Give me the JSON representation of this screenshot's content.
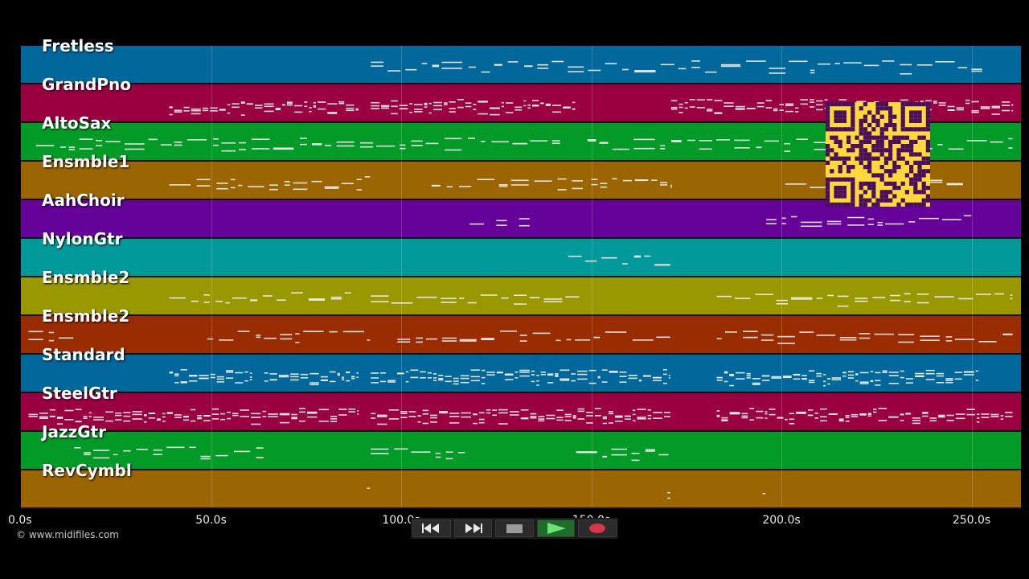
{
  "tracks": [
    {
      "name": "Fretless",
      "color": "#02679a"
    },
    {
      "name": "GrandPno",
      "color": "#9a0040"
    },
    {
      "name": "AltoSax",
      "color": "#049a27"
    },
    {
      "name": "Ensmble1",
      "color": "#9a6502"
    },
    {
      "name": "AahChoir",
      "color": "#64029a"
    },
    {
      "name": "NylonGtr",
      "color": "#02999a"
    },
    {
      "name": "Ensmble2",
      "color": "#9a9802"
    },
    {
      "name": "Ensmble2",
      "color": "#9a2c02"
    },
    {
      "name": "Standard",
      "color": "#02679a"
    },
    {
      "name": "SteelGtr",
      "color": "#9a0040"
    },
    {
      "name": "JazzGtr",
      "color": "#049a27"
    },
    {
      "name": "RevCymbl",
      "color": "#9a6502"
    }
  ],
  "timeline": {
    "max_seconds": 263,
    "ticks": [
      {
        "value": 0,
        "label": "0.0s"
      },
      {
        "value": 50,
        "label": "50.0s"
      },
      {
        "value": 100,
        "label": "100.0s"
      },
      {
        "value": 150,
        "label": "150.0s"
      },
      {
        "value": 200,
        "label": "200.0s"
      },
      {
        "value": 250,
        "label": "250.0s"
      }
    ]
  },
  "note_segments": [
    {
      "track": 0,
      "ranges": [
        [
          92,
          253
        ]
      ]
    },
    {
      "track": 1,
      "ranges": [
        [
          39,
          89
        ],
        [
          92,
          146
        ],
        [
          171,
          261
        ]
      ]
    },
    {
      "track": 2,
      "ranges": [
        [
          4,
          142
        ],
        [
          149,
          261
        ]
      ]
    },
    {
      "track": 3,
      "ranges": [
        [
          39,
          92
        ],
        [
          108,
          148
        ],
        [
          150,
          171
        ],
        [
          201,
          248
        ]
      ]
    },
    {
      "track": 4,
      "ranges": [
        [
          118,
          122
        ],
        [
          125,
          128
        ],
        [
          131,
          134
        ],
        [
          196,
          251
        ]
      ]
    },
    {
      "track": 5,
      "ranges": [
        [
          144,
          171
        ]
      ]
    },
    {
      "track": 6,
      "ranges": [
        [
          39,
          87
        ],
        [
          92,
          147
        ],
        [
          183,
          261
        ]
      ]
    },
    {
      "track": 7,
      "ranges": [
        [
          2,
          14
        ],
        [
          49,
          92
        ],
        [
          99,
          171
        ],
        [
          183,
          261
        ]
      ]
    },
    {
      "track": 8,
      "ranges": [
        [
          39,
          61
        ],
        [
          64,
          89
        ],
        [
          92,
          171
        ],
        [
          183,
          252
        ]
      ]
    },
    {
      "track": 9,
      "ranges": [
        [
          2,
          89
        ],
        [
          92,
          171
        ],
        [
          183,
          261
        ]
      ]
    },
    {
      "track": 10,
      "ranges": [
        [
          14,
          64
        ],
        [
          92,
          117
        ],
        [
          146,
          171
        ]
      ]
    },
    {
      "track": 11,
      "ranges": [
        [
          91,
          92
        ],
        [
          170,
          171
        ],
        [
          195,
          196
        ]
      ]
    }
  ],
  "controls": {
    "rewind": "rewind-icon",
    "fast_forward": "fast-forward-icon",
    "stop": "stop-icon",
    "play": "play-icon",
    "record": "record-icon"
  },
  "copyright": "© www.midifiles.com"
}
